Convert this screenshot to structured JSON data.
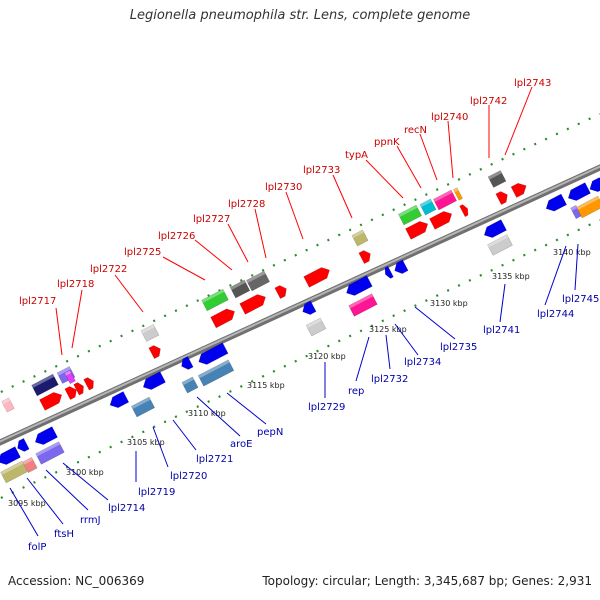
{
  "title": "Legionella pneumophila str. Lens, complete genome",
  "footer": {
    "accession": "Accession: NC_006369",
    "summary": "Topology: circular; Length: 3,345,687 bp; Genes: 2,931"
  },
  "colors": {
    "backbone": "#888888",
    "tick": "#2e8b2e",
    "forward_label": "#cc0000",
    "reverse_label": "#0000aa",
    "leader_forward": "#ff0000",
    "leader_reverse": "#0000cc"
  },
  "kbp_ticks": [
    "3095 kbp",
    "3100 kbp",
    "3105 kbp",
    "3110 kbp",
    "3115 kbp",
    "3120 kbp",
    "3125 kbp",
    "3130 kbp",
    "3135 kbp",
    "3140 kbp"
  ],
  "forward_labels": [
    "lpl2717",
    "lpl2718",
    "lpl2722",
    "lpl2725",
    "lpl2726",
    "lpl2727",
    "lpl2728",
    "lpl2730",
    "lpl2733",
    "typA",
    "ppnK",
    "recN",
    "lpl2740",
    "lpl2742",
    "lpl2743"
  ],
  "reverse_labels": [
    "folP",
    "ftsH",
    "rrmJ",
    "lpl2714",
    "lpl2719",
    "lpl2720",
    "lpl2721",
    "aroE",
    "pepN",
    "lpl2729",
    "rep",
    "lpl2732",
    "lpl2734",
    "lpl2735",
    "lpl2741",
    "lpl2744",
    "lpl2745"
  ]
}
